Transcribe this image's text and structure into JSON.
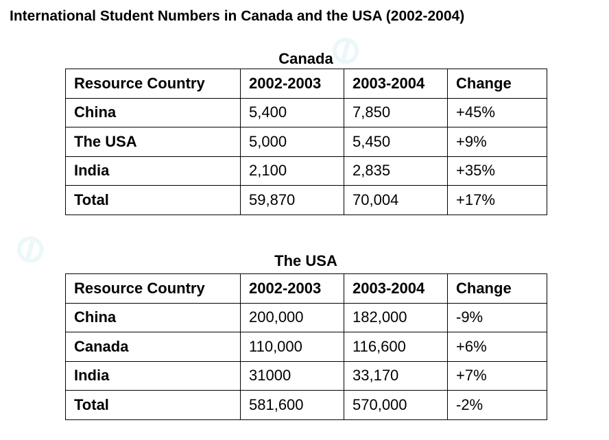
{
  "title": "International Student Numbers in Canada and the USA (2002-2004)",
  "chart_data": {
    "type": "table",
    "title": "International Student Numbers in Canada and the USA (2002-2004)",
    "tables": [
      {
        "title": "Canada",
        "columns": [
          "Resource Country",
          "2002-2003",
          "2003-2004",
          "Change"
        ],
        "rows": [
          [
            "China",
            "5,400",
            "7,850",
            "+45%"
          ],
          [
            "The USA",
            "5,000",
            "5,450",
            "+9%"
          ],
          [
            "India",
            "2,100",
            "2,835",
            "+35%"
          ],
          [
            "Total",
            "59,870",
            "70,004",
            "+17%"
          ]
        ]
      },
      {
        "title": "The USA",
        "columns": [
          "Resource Country",
          "2002-2003",
          "2003-2004",
          "Change"
        ],
        "rows": [
          [
            "China",
            "200,000",
            "182,000",
            "-9%"
          ],
          [
            "Canada",
            "110,000",
            "116,600",
            "+6%"
          ],
          [
            "India",
            "31000",
            "33,170",
            "+7%"
          ],
          [
            "Total",
            "581,600",
            "570,000",
            "-2%"
          ]
        ]
      }
    ]
  }
}
